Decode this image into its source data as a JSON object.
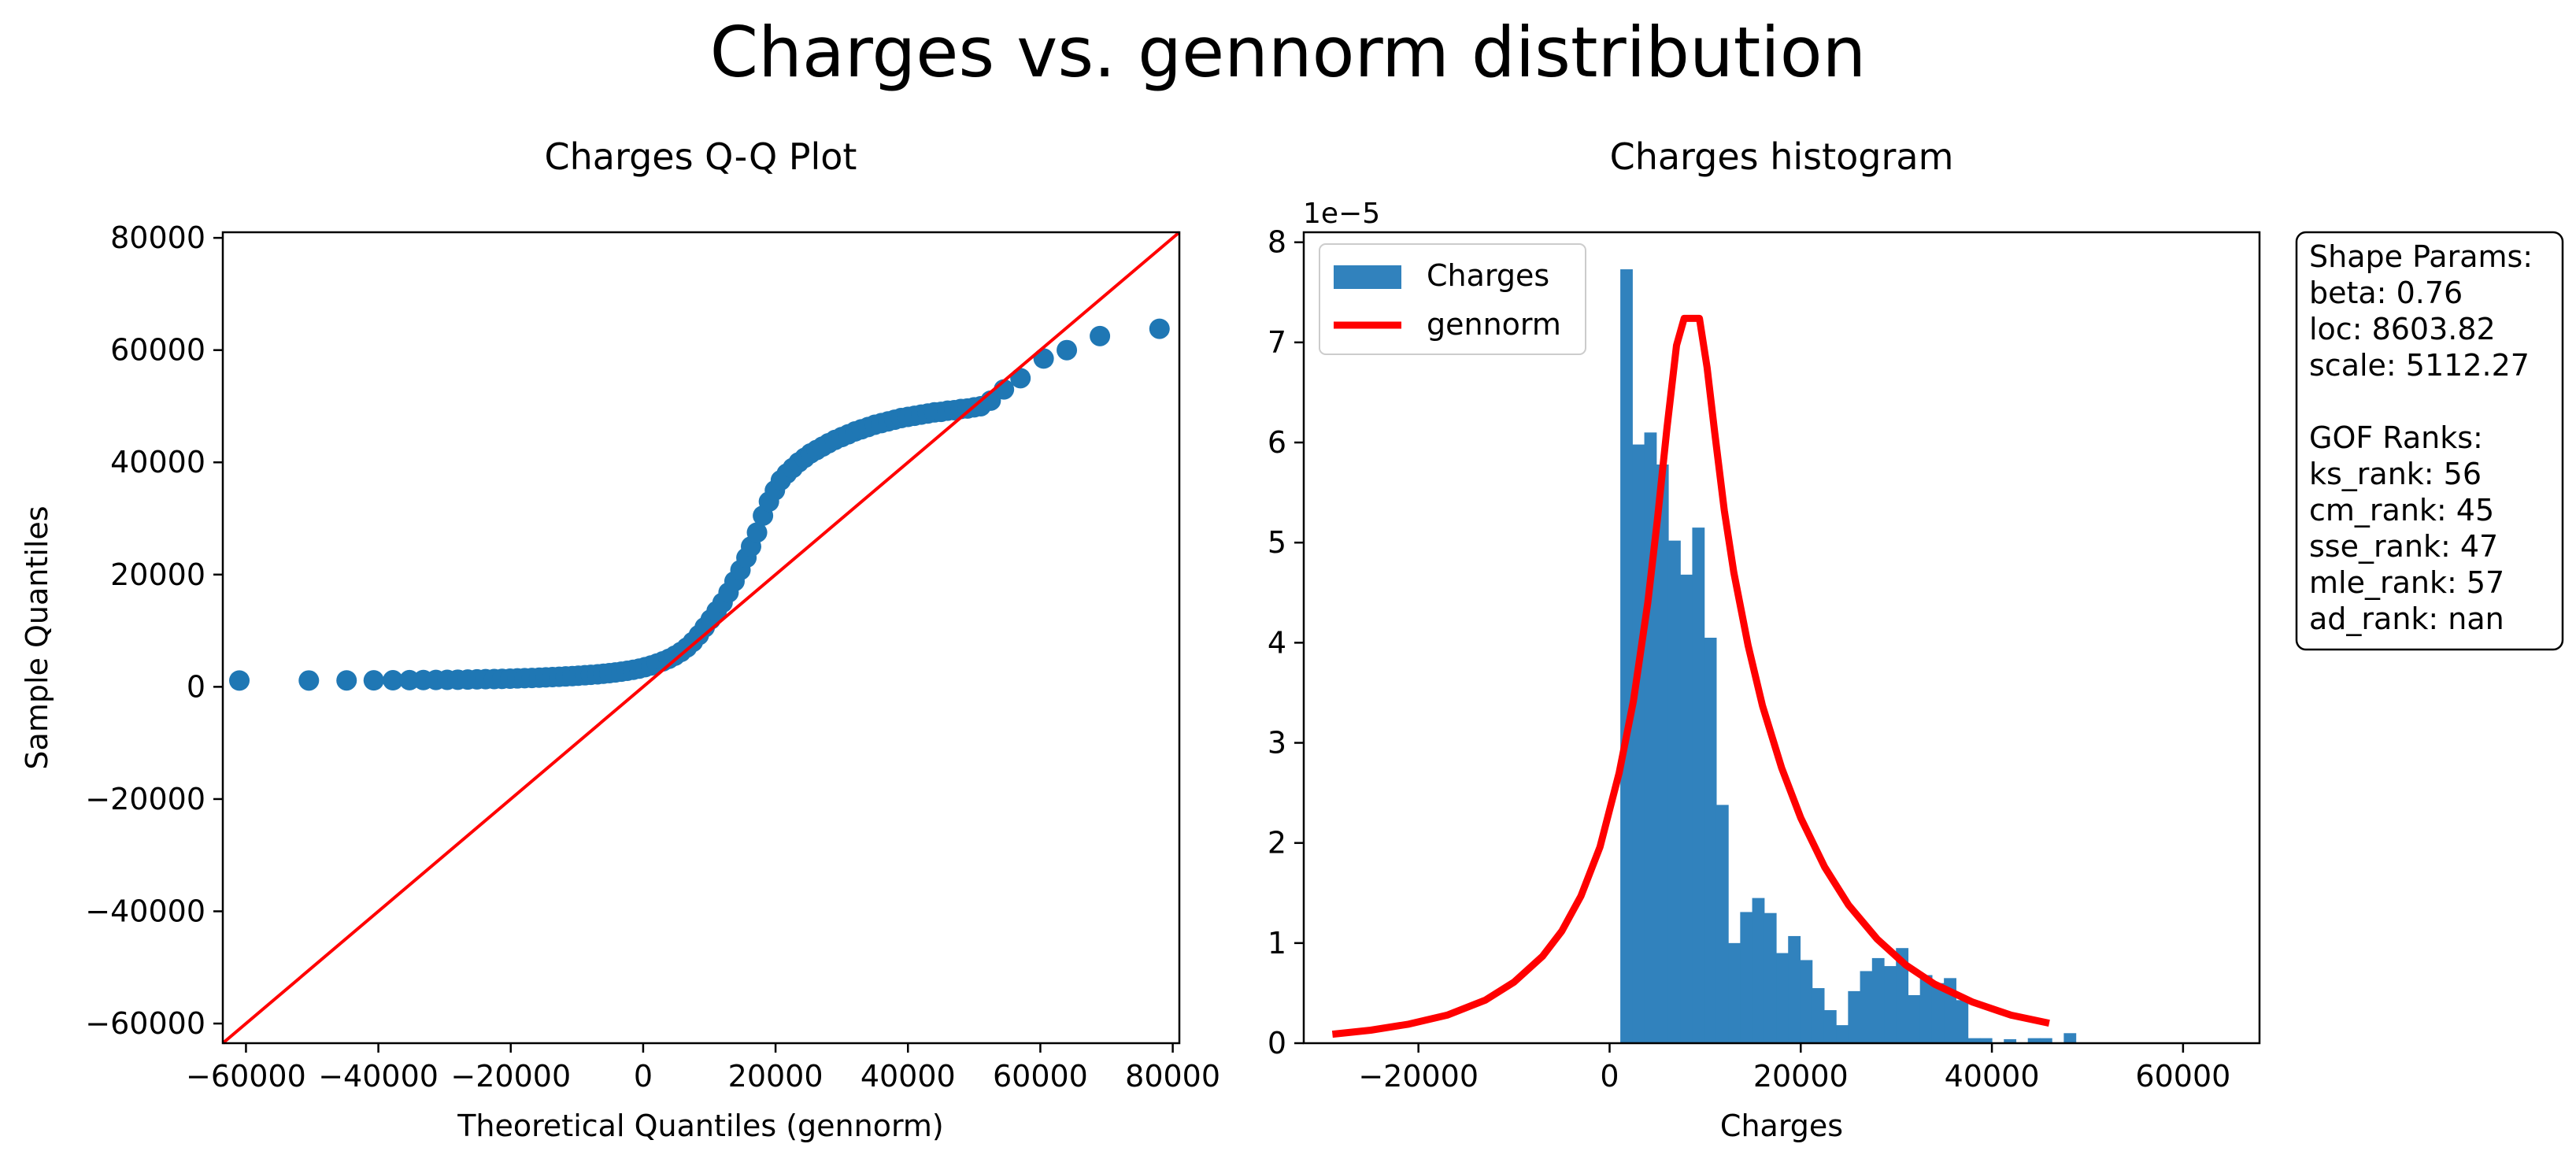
{
  "suptitle": "Charges vs. gennorm distribution",
  "colors": {
    "points": "#1f77b4",
    "bars": "#3182bd",
    "line": "#ff0000"
  },
  "chart_data": [
    {
      "type": "scatter",
      "title": "Charges Q-Q Plot",
      "xlabel": "Theoretical Quantiles (gennorm)",
      "ylabel": "Sample Quantiles",
      "xlim": [
        -63500,
        81000
      ],
      "ylim": [
        -63500,
        81000
      ],
      "xticks": [
        -60000,
        -40000,
        -20000,
        0,
        20000,
        40000,
        60000,
        80000
      ],
      "yticks": [
        -60000,
        -40000,
        -20000,
        0,
        20000,
        40000,
        60000,
        80000
      ],
      "grid": false,
      "reference_line": {
        "from": [
          -63500,
          -63500
        ],
        "to": [
          81000,
          81000
        ],
        "color": "#ff0000"
      },
      "series": [
        {
          "x": [
            -61000,
            -50500,
            -44800,
            -40700,
            -37800,
            -35300,
            -33200,
            -31300,
            -29600,
            -28000,
            -26500,
            -25100,
            -23800,
            -22500,
            -21300,
            -20100,
            -19000,
            -17900,
            -16800,
            -15700,
            -14700,
            -13700,
            -12700,
            -11700,
            -10700,
            -9800,
            -8800,
            -7900,
            -6900,
            -6000,
            -5100,
            -4200,
            -3300,
            -2400,
            -1500,
            -600,
            300,
            1200,
            2100,
            3000,
            3900,
            4800,
            5700,
            6600,
            7500,
            8400,
            9300,
            10200,
            11100,
            12000,
            12900,
            13800,
            14700,
            15600,
            16300,
            17200,
            18100,
            19000,
            19900,
            20800,
            21700,
            22600,
            23500,
            24400,
            25300,
            26200,
            27100,
            28000,
            29000,
            30000,
            31000,
            32000,
            33000,
            34000,
            35000,
            36000,
            37000,
            38000,
            39000,
            40000,
            41000,
            42000,
            43000,
            44000,
            45000,
            46000,
            47000,
            48000,
            49000,
            50000,
            51000,
            52500,
            54500,
            57000,
            60500,
            64000,
            69000,
            78000
          ],
          "y": [
            1122,
            1130,
            1140,
            1150,
            1170,
            1190,
            1210,
            1230,
            1250,
            1270,
            1300,
            1330,
            1360,
            1390,
            1420,
            1460,
            1500,
            1540,
            1580,
            1630,
            1680,
            1730,
            1790,
            1850,
            1910,
            1980,
            2060,
            2140,
            2230,
            2330,
            2440,
            2560,
            2700,
            2860,
            3040,
            3250,
            3500,
            3800,
            4150,
            4550,
            5000,
            5550,
            6200,
            7000,
            8000,
            9200,
            10600,
            12000,
            13500,
            15000,
            16800,
            18800,
            20800,
            23000,
            25000,
            27500,
            30500,
            33000,
            35000,
            36800,
            38000,
            39000,
            40000,
            40800,
            41600,
            42200,
            42800,
            43400,
            44000,
            44500,
            45000,
            45500,
            45900,
            46300,
            46700,
            47000,
            47300,
            47600,
            47900,
            48100,
            48300,
            48500,
            48700,
            48900,
            49000,
            49200,
            49300,
            49500,
            49600,
            49800,
            50000,
            51000,
            53000,
            55000,
            58500,
            60000,
            62500,
            63800
          ]
        }
      ]
    },
    {
      "type": "bar",
      "title": "Charges histogram",
      "xlabel": "Charges",
      "ylabel": "",
      "y_offset_text": "1e−5",
      "xlim": [
        -32000,
        68000
      ],
      "ylim": [
        0,
        8.1
      ],
      "xticks": [
        -20000,
        0,
        20000,
        40000,
        60000
      ],
      "yticks": [
        0,
        1,
        2,
        3,
        4,
        5,
        6,
        7,
        8
      ],
      "grid": false,
      "legend": {
        "placement": "upper-left",
        "entries": [
          "Charges",
          "gennorm"
        ]
      },
      "histogram": {
        "name": "Charges",
        "bin_start": 1122,
        "bin_width": 1254,
        "values": [
          7.73,
          5.98,
          6.1,
          5.78,
          5.02,
          4.68,
          5.15,
          4.05,
          2.38,
          1.0,
          1.31,
          1.45,
          1.3,
          0.9,
          1.07,
          0.83,
          0.55,
          0.33,
          0.18,
          0.52,
          0.72,
          0.85,
          0.77,
          0.95,
          0.48,
          0.68,
          0.6,
          0.65,
          0.43,
          0.05,
          0.05,
          0,
          0.04,
          0,
          0.05,
          0.05,
          0,
          0.1
        ]
      },
      "fitted_curve": {
        "name": "gennorm",
        "x": [
          -29000,
          -25000,
          -21000,
          -17000,
          -13000,
          -10000,
          -7000,
          -5000,
          -3000,
          -1000,
          1000,
          2500,
          4000,
          5000,
          6000,
          7000,
          7800,
          8300,
          8603,
          8900,
          9400,
          10200,
          11000,
          12000,
          13000,
          14500,
          16000,
          18000,
          20000,
          22500,
          25000,
          28000,
          31000,
          34000,
          38000,
          42000,
          46000
        ],
        "y": [
          0.09,
          0.13,
          0.19,
          0.28,
          0.43,
          0.61,
          0.87,
          1.12,
          1.47,
          1.96,
          2.7,
          3.42,
          4.4,
          5.23,
          6.14,
          6.97,
          7.24,
          7.24,
          7.24,
          7.24,
          7.24,
          6.75,
          6.1,
          5.32,
          4.7,
          3.97,
          3.37,
          2.75,
          2.25,
          1.76,
          1.38,
          1.04,
          0.78,
          0.59,
          0.41,
          0.28,
          0.2
        ]
      }
    }
  ],
  "stats_box": [
    "Shape Params:",
    "beta: 0.76",
    "loc: 8603.82",
    "scale: 5112.27",
    "",
    "GOF Ranks:",
    "ks_rank: 56",
    "cm_rank: 45",
    "sse_rank: 47",
    "mle_rank: 57",
    "ad_rank: nan"
  ]
}
